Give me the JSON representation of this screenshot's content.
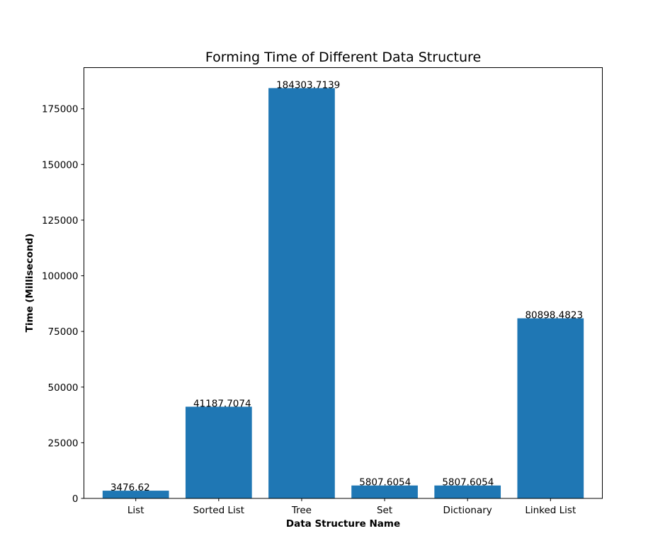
{
  "chart_data": {
    "type": "bar",
    "title": "Forming Time of Different Data Structure",
    "xlabel": "Data Structure Name",
    "ylabel": "Time (Millisecond)",
    "categories": [
      "List",
      "Sorted List",
      "Tree",
      "Set",
      "Dictionary",
      "Linked List"
    ],
    "values": [
      3476.62,
      41187.7074,
      184303.7139,
      5807.6054,
      5807.6054,
      80898.4823
    ],
    "data_labels": [
      "3476.62",
      "41187.7074",
      "184303.7139",
      "5807.6054",
      "5807.6054",
      "80898.4823"
    ],
    "ylim": [
      0,
      193500
    ],
    "yticks": [
      0,
      25000,
      50000,
      75000,
      100000,
      125000,
      150000,
      175000
    ],
    "ytick_labels": [
      "0",
      "25000",
      "50000",
      "75000",
      "100000",
      "125000",
      "150000",
      "175000"
    ],
    "bar_color": "#1f77b4",
    "grid": false,
    "legend": "none"
  }
}
